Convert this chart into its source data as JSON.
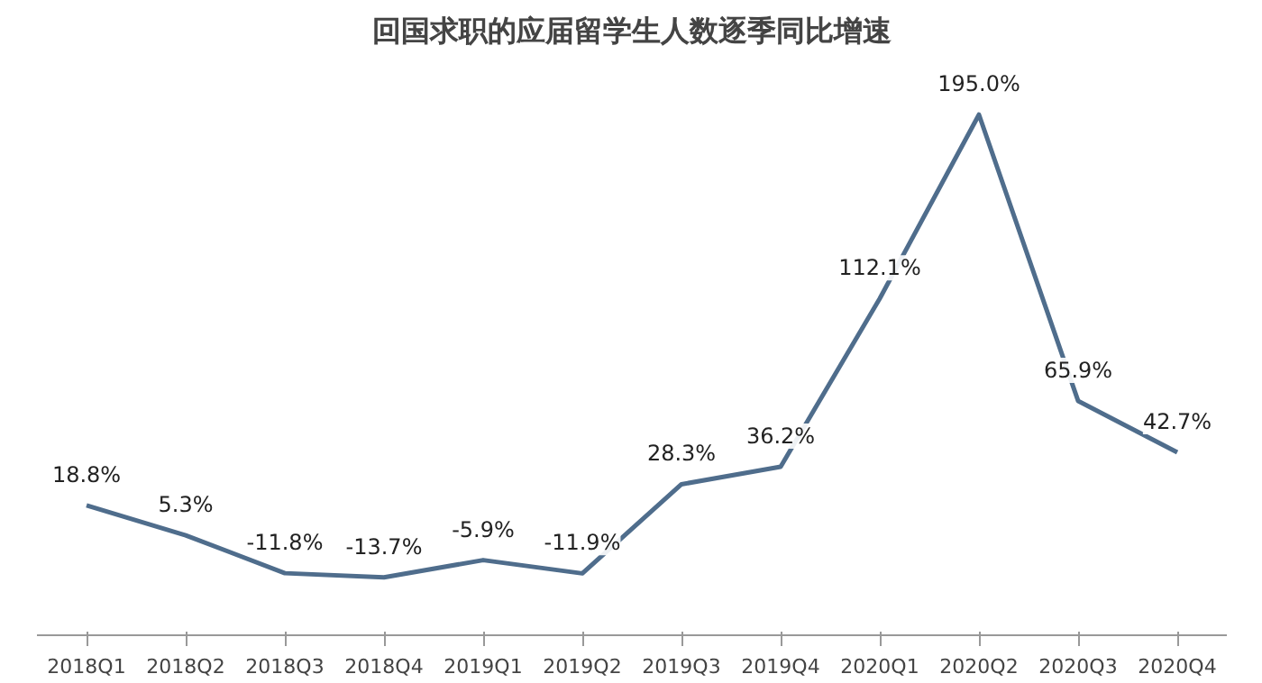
{
  "chart_data": {
    "type": "line",
    "title": "回国求职的应届留学生人数逐季同比增速",
    "categories": [
      "2018Q1",
      "2018Q2",
      "2018Q3",
      "2018Q4",
      "2019Q1",
      "2019Q2",
      "2019Q3",
      "2019Q4",
      "2020Q1",
      "2020Q2",
      "2020Q3",
      "2020Q4"
    ],
    "series": [
      {
        "color": "#4f6d8c",
        "values": [
          18.8,
          5.3,
          -11.8,
          -13.7,
          -5.9,
          -11.9,
          28.3,
          36.2,
          112.1,
          195.0,
          65.9,
          42.7
        ],
        "value_labels": [
          "18.8%",
          "5.3%",
          "-11.8%",
          "-13.7%",
          "-5.9%",
          "-11.9%",
          "28.3%",
          "36.2%",
          "112.1%",
          "195.0%",
          "65.9%",
          "42.7%"
        ]
      }
    ],
    "tick_labels": "x",
    "grid": false,
    "marker": "none",
    "line_style": "solid"
  }
}
